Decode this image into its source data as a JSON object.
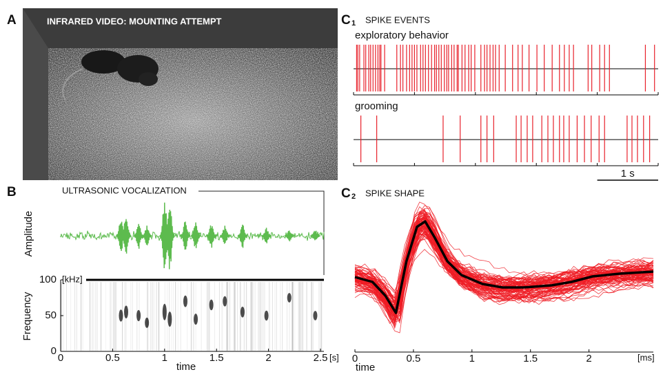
{
  "panels": {
    "A": {
      "label": "A",
      "title": "INFRARED VIDEO: MOUNTING ATTEMPT"
    },
    "B": {
      "label": "B",
      "title": "ULTRASONIC VOCALIZATION",
      "amplitude_label": "Amplitude",
      "frequency_label": "Frequency",
      "freq_unit": "[kHz]",
      "x_label": "time",
      "x_unit": "[s]",
      "xlim": [
        0,
        2.5
      ],
      "xticks": [
        0,
        0.5,
        1,
        1.5,
        2,
        2.5
      ],
      "ylim": [
        0,
        100
      ],
      "yticks": [
        0,
        50,
        100
      ],
      "syllables": {
        "t": [
          0.58,
          0.63,
          0.75,
          0.83,
          1.0,
          1.05,
          1.2,
          1.3,
          1.45,
          1.58,
          1.75,
          1.98,
          2.2,
          2.45
        ],
        "amplitude": [
          0.45,
          0.55,
          0.35,
          0.25,
          1,
          0.85,
          0.4,
          0.35,
          0.3,
          0.25,
          0.3,
          0.2,
          0.15,
          0.15
        ],
        "frequency": [
          50,
          55,
          50,
          40,
          55,
          45,
          70,
          45,
          65,
          70,
          55,
          50,
          75,
          50
        ]
      }
    },
    "C1": {
      "label": "C",
      "sub": "1",
      "title": "SPIKE EVENTS",
      "xlim": [
        0,
        5
      ],
      "xticks": [
        0,
        1,
        2,
        3,
        4,
        5
      ],
      "scale_bar": {
        "value": 1,
        "label": "1 s"
      },
      "rows": [
        {
          "name": "exploratory behavior",
          "spikes": [
            0.05,
            0.07,
            0.1,
            0.17,
            0.2,
            0.25,
            0.28,
            0.32,
            0.36,
            0.4,
            0.43,
            0.45,
            0.51,
            0.71,
            0.77,
            0.81,
            0.87,
            0.92,
            0.96,
            1.0,
            1.04,
            1.1,
            1.14,
            1.18,
            1.23,
            1.28,
            1.33,
            1.36,
            1.4,
            1.44,
            1.49,
            1.53,
            1.56,
            1.61,
            1.65,
            1.7,
            1.72,
            1.78,
            1.83,
            1.89,
            1.93,
            1.99,
            2.09,
            2.15,
            2.19,
            2.24,
            2.29,
            2.33,
            2.39,
            2.49,
            2.61,
            2.7,
            2.77,
            2.88,
            3.01,
            3.13,
            3.26,
            3.38,
            3.46,
            3.54,
            3.61,
            3.85,
            3.91,
            4.04,
            4.12,
            4.2,
            4.79,
            4.94
          ]
        },
        {
          "name": "grooming",
          "spikes": [
            0.12,
            0.38,
            1.47,
            1.75,
            2.09,
            2.19,
            2.3,
            2.67,
            2.75,
            2.85,
            2.94,
            3.09,
            3.19,
            3.28,
            3.38,
            3.45,
            3.54,
            3.67,
            3.79,
            3.9,
            4.03,
            4.12,
            4.49,
            4.57,
            4.66,
            4.76,
            4.86
          ]
        }
      ]
    },
    "C2": {
      "label": "C",
      "sub": "2",
      "title": "SPIKE SHAPE",
      "x_label": "time",
      "x_unit": "[ms]",
      "xlim": [
        0,
        2.55
      ],
      "xticks": [
        0,
        0.5,
        1,
        1.5,
        2
      ],
      "ylim": [
        -1,
        1
      ],
      "mean": {
        "x": [
          0,
          0.15,
          0.26,
          0.35,
          0.44,
          0.53,
          0.6,
          0.68,
          0.79,
          0.91,
          1.09,
          1.26,
          1.44,
          1.68,
          1.85,
          2.03,
          2.26,
          2.55
        ],
        "y": [
          -0.13,
          -0.2,
          -0.4,
          -0.65,
          0.1,
          0.6,
          0.68,
          0.45,
          0.1,
          -0.1,
          -0.23,
          -0.28,
          -0.28,
          -0.25,
          -0.2,
          -0.12,
          -0.08,
          -0.05
        ]
      }
    }
  }
}
